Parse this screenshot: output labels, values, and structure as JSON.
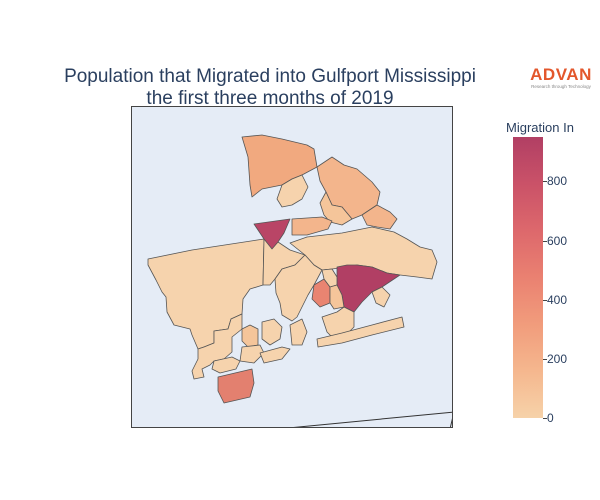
{
  "title_line1": "Population that Migrated into Gulfport Mississippi",
  "title_line2": "the first three months of 2019",
  "logo": {
    "name": "ADVAN",
    "tagline": "Research through Technology",
    "color": "#e3572c"
  },
  "colorbar": {
    "title": "Migration In",
    "ticks": [
      {
        "label": "800",
        "value": 800
      },
      {
        "label": "600",
        "value": 600
      },
      {
        "label": "400",
        "value": 400
      },
      {
        "label": "200",
        "value": 200
      },
      {
        "label": "0",
        "value": 0
      }
    ],
    "min": 0,
    "max": 950,
    "scale": [
      "#f6d2a9",
      "#f5b78e",
      "#f19c7c",
      "#ea8171",
      "#dd686c",
      "#ca5268",
      "#b13f64"
    ]
  },
  "colors": {
    "background": "#e5ecf6",
    "border": "#444444",
    "text": "#2a3f5f"
  }
}
